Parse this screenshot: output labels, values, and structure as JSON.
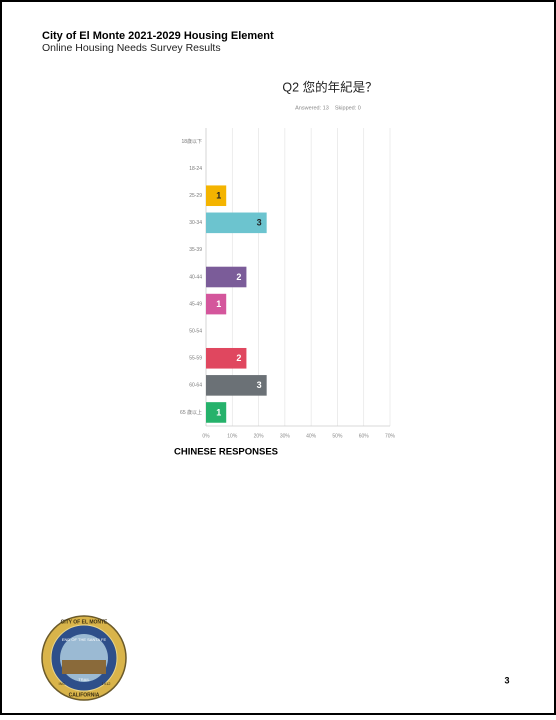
{
  "header": {
    "title": "City of El Monte 2021-2029 Housing Element",
    "subtitle": "Online Housing Needs Survey Results"
  },
  "chart_data": {
    "type": "hbar",
    "title": "Q2 您的年紀是？",
    "subtitle": "Answered: 13    Skipped: 0",
    "categories": [
      "18歲以下",
      "18-24",
      "25-29",
      "30-34",
      "35-39",
      "40-44",
      "45-49",
      "50-54",
      "55-59",
      "60-64",
      "65 歲以上"
    ],
    "values": [
      0,
      0,
      7.69,
      23.08,
      0,
      15.38,
      7.69,
      0,
      15.38,
      23.08,
      7.69
    ],
    "response_counts": [
      null,
      null,
      1,
      3,
      null,
      2,
      1,
      null,
      2,
      3,
      1
    ],
    "colors": [
      null,
      null,
      "#f4b400",
      "#6cc4cf",
      null,
      "#7b5c99",
      "#d4569c",
      null,
      "#e0475f",
      "#6b7176",
      "#26b26b"
    ],
    "xlim": [
      0,
      70
    ],
    "xticks": [
      {
        "value": 0,
        "label": "0%"
      },
      {
        "value": 10,
        "label": "10%"
      },
      {
        "value": 20,
        "label": "20%"
      },
      {
        "value": 30,
        "label": "30%"
      },
      {
        "value": 40,
        "label": "40%"
      },
      {
        "value": 50,
        "label": "50%"
      },
      {
        "value": 60,
        "label": "60%"
      },
      {
        "value": 70,
        "label": "70%"
      }
    ],
    "grid": true,
    "caption": "CHINESE RESPONSES"
  },
  "seal": {
    "top": "CITY OF EL MONTE",
    "ribbon": "END OF THE SANTA FE",
    "trail": "TRAIL",
    "inc": "INC",
    "year": "1912",
    "bottom": "CALIFORNIA"
  },
  "page_number": "3"
}
